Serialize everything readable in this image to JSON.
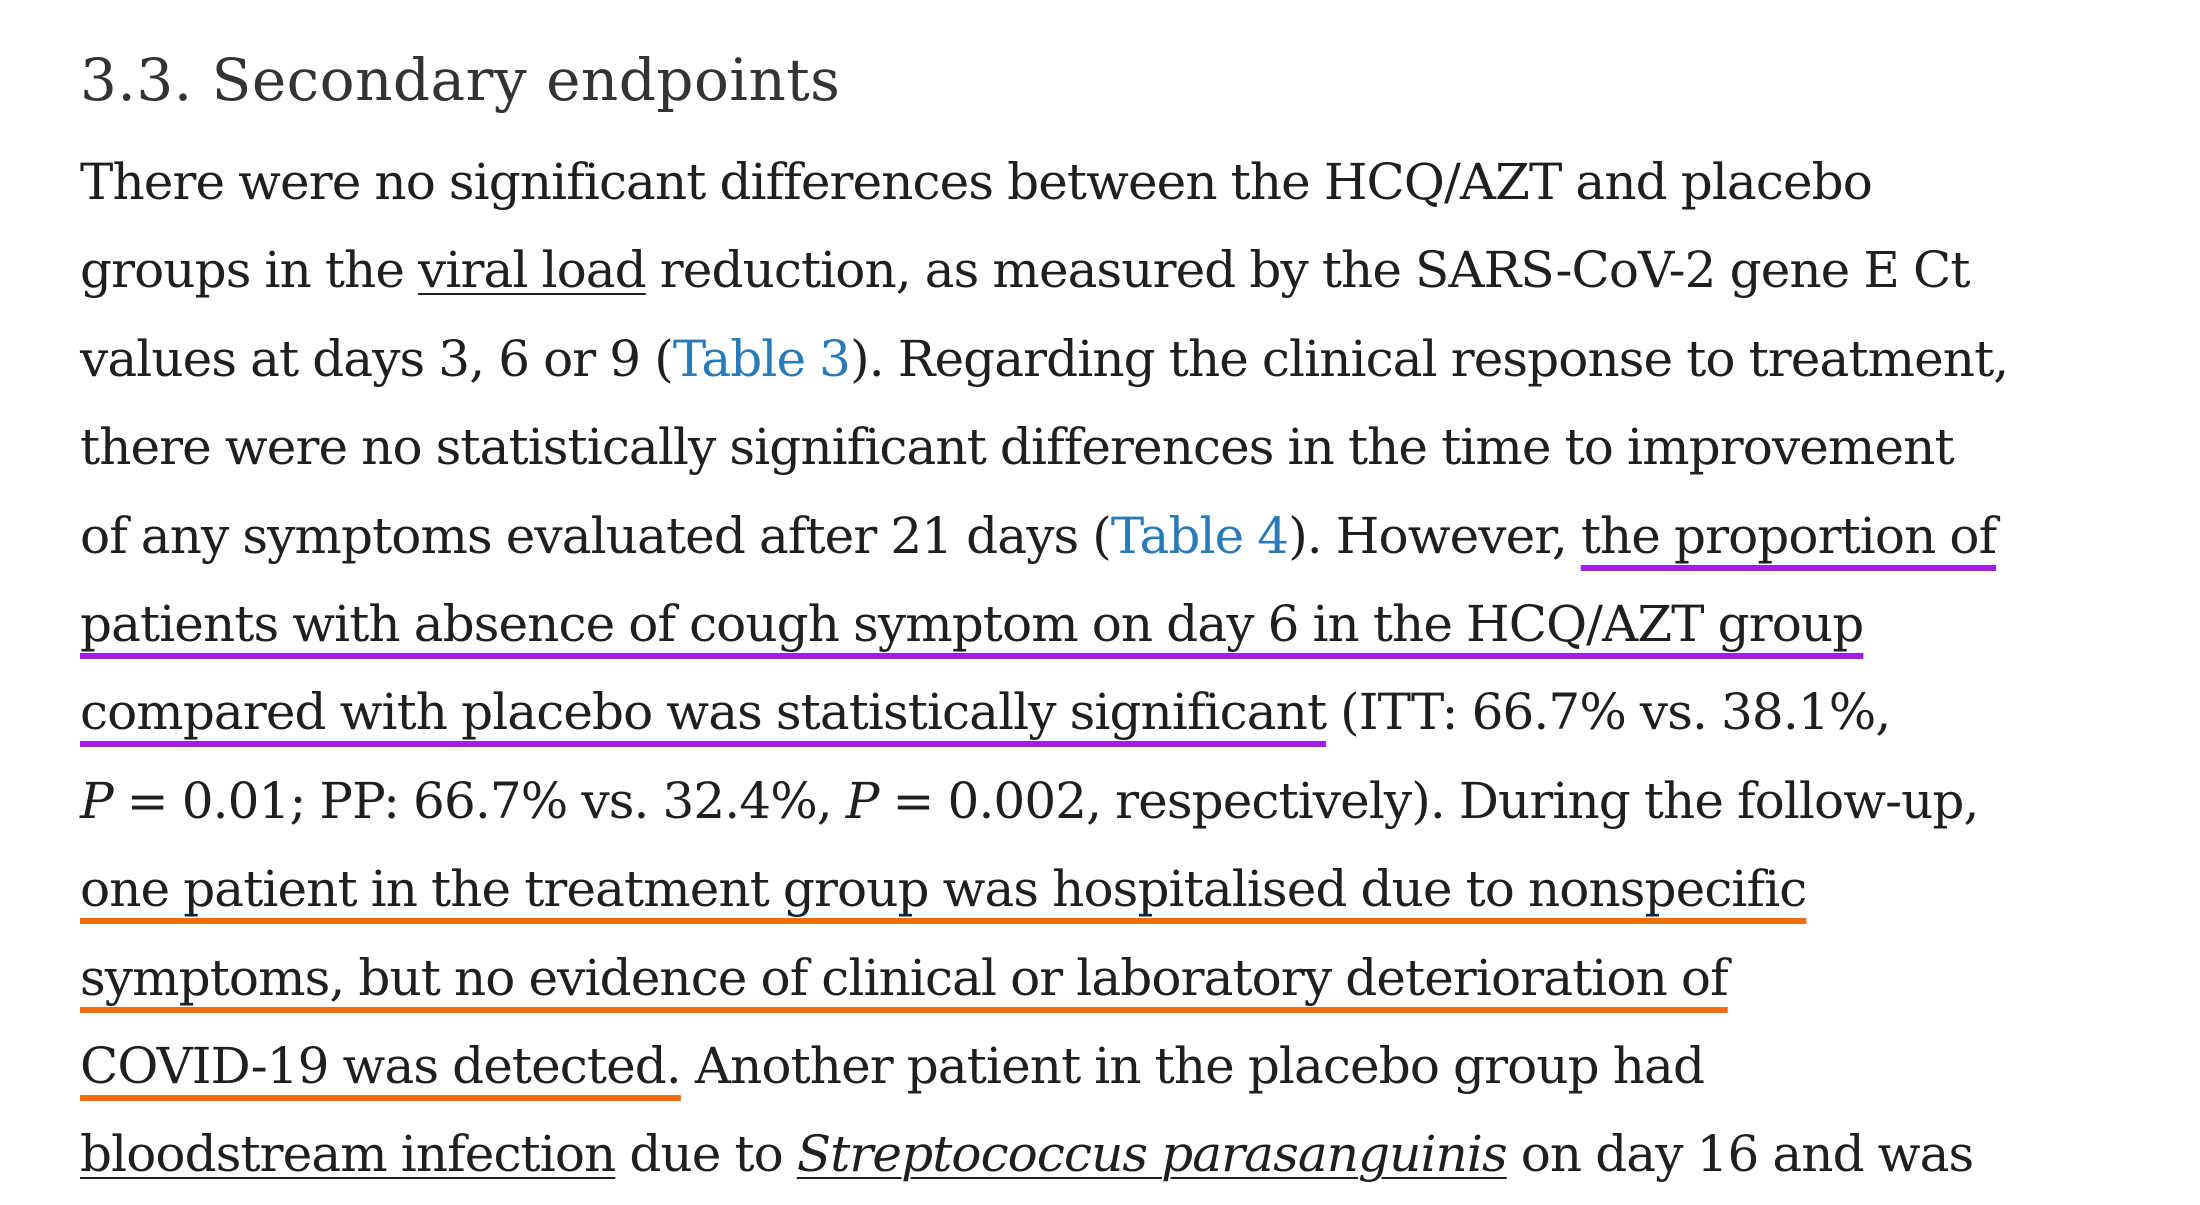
{
  "heading": "3.3. Secondary endpoints",
  "highlight_colors": {
    "purple": "#a11fe3",
    "orange": "#f06a12",
    "link": "#2a7ab8"
  },
  "paragraph": {
    "l1": "There were no significant differences between the HCQ/AZT and placebo",
    "l2_a": "groups in the ",
    "l2_link": "viral load",
    "l2_b": " reduction, as measured by the SARS-CoV-2 gene E Ct",
    "l3_a": "values at days 3, 6 or 9 (",
    "l3_link": "Table 3",
    "l3_b": "). Regarding the clinical response to treatment,",
    "l4": "there were no statistically significant differences in the time to improvement",
    "l5_a": "of any symptoms evaluated after 21 days (",
    "l5_link": "Table 4",
    "l5_b": "). However, ",
    "l5_hl": "the proportion of ",
    "l6_hl": "patients with absence of cough symptom on day 6 in the HCQ/AZT group",
    "l7_hl": "compared with placebo was statistically significant",
    "l7_b": " (ITT: 66.7% vs. 38.1%,",
    "l8_p1": "P",
    "l8_a": " = 0.01; PP: 66.7% vs. 32.4%, ",
    "l8_p2": "P",
    "l8_b": " = 0.002, respectively). During the follow-up,",
    "l9_hl": "one patient in the treatment group was hospitalised due to nonspecific ",
    "l10_hl": "symptoms, but no evidence of clinical or laboratory deterioration of ",
    "l11_hl": "COVID-19 was detected.",
    "l11_b": " Another patient in the placebo group had",
    "l12_link1": "bloodstream infection",
    "l12_a": " due to ",
    "l12_link2": "Streptococcus parasanguinis",
    "l12_b": " on day 16 and was"
  }
}
